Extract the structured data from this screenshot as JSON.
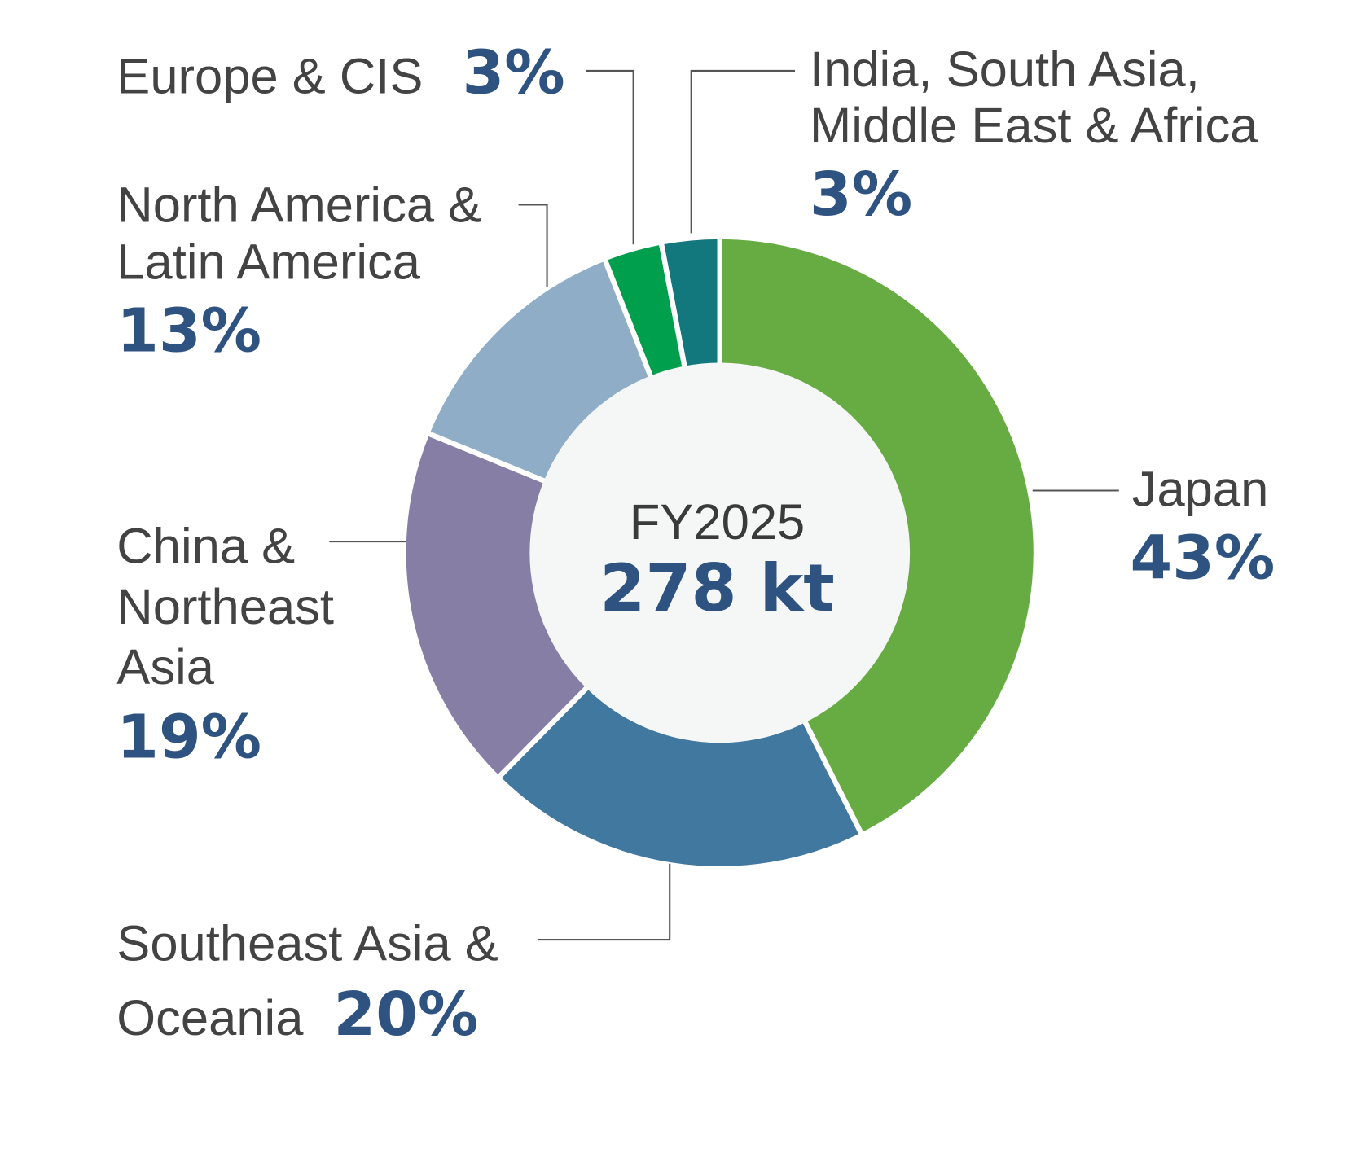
{
  "chart_data": {
    "type": "pie",
    "subtype": "donut",
    "center_label": {
      "year": "FY2025",
      "total": "278 kt"
    },
    "slices": [
      {
        "name": "Japan",
        "label_lines": [
          "Japan"
        ],
        "value": 43,
        "pct_label": "43%",
        "color": "#67ab43"
      },
      {
        "name": "Southeast Asia & Oceania",
        "label_lines": [
          "Southeast Asia &",
          "Oceania"
        ],
        "value": 20,
        "pct_label": "20%",
        "color": "#41789f"
      },
      {
        "name": "China & Northeast Asia",
        "label_lines": [
          "China &",
          "Northeast",
          "Asia"
        ],
        "value": 19,
        "pct_label": "19%",
        "color": "#877ea6"
      },
      {
        "name": "North America & Latin America",
        "label_lines": [
          "North America &",
          "Latin America"
        ],
        "value": 13,
        "pct_label": "13%",
        "color": "#8fadc6"
      },
      {
        "name": "Europe & CIS",
        "label_lines": [
          "Europe & CIS"
        ],
        "value": 3,
        "pct_label": "3%",
        "color": "#009f4d"
      },
      {
        "name": "India, South Asia, Middle East & Africa",
        "label_lines": [
          "India, South Asia,",
          "Middle East & Africa"
        ],
        "value": 3,
        "pct_label": "3%",
        "color": "#13777e"
      }
    ]
  }
}
